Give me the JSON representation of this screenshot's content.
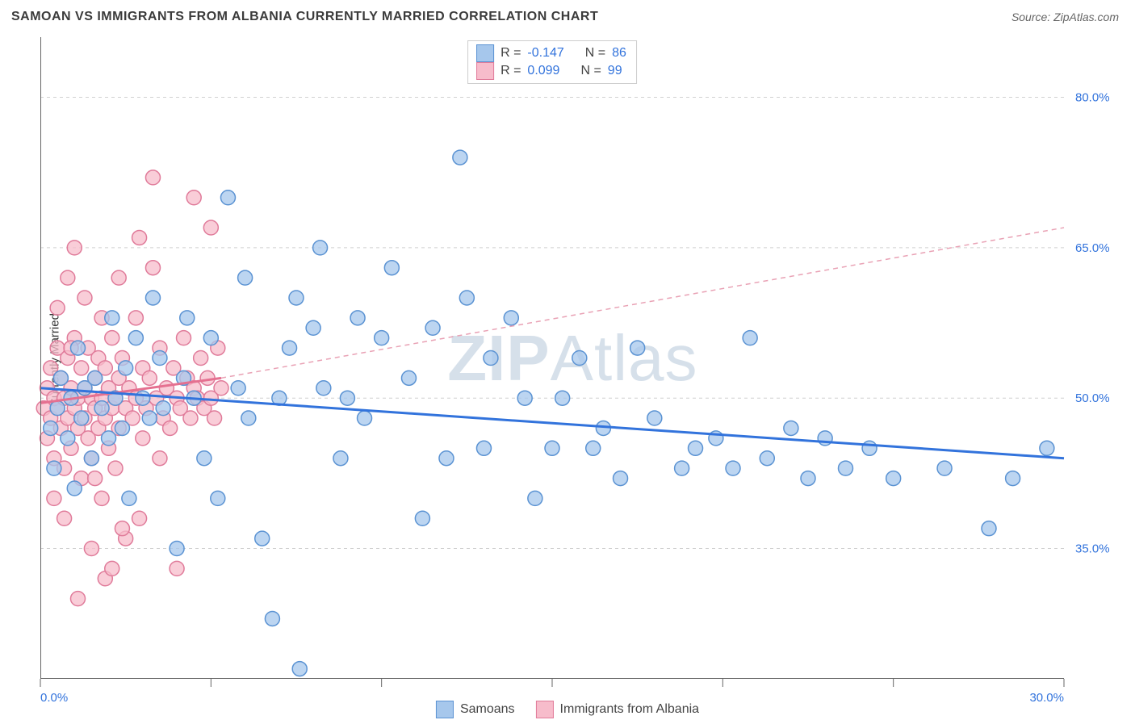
{
  "title": "SAMOAN VS IMMIGRANTS FROM ALBANIA CURRENTLY MARRIED CORRELATION CHART",
  "source": "Source: ZipAtlas.com",
  "watermark_a": "ZIP",
  "watermark_b": "Atlas",
  "chart": {
    "type": "scatter",
    "background_color": "#ffffff",
    "grid_color": "#d0d0d0",
    "xlim": [
      0,
      30
    ],
    "ylim": [
      22,
      86
    ],
    "x_tick_positions": [
      0,
      5,
      10,
      15,
      20,
      25,
      30
    ],
    "x_tick_labels": {
      "0": "0.0%",
      "30": "30.0%"
    },
    "y_ticks": [
      {
        "v": 35,
        "label": "35.0%"
      },
      {
        "v": 50,
        "label": "50.0%"
      },
      {
        "v": 65,
        "label": "65.0%"
      },
      {
        "v": 80,
        "label": "80.0%"
      }
    ],
    "y_axis_title": "Currently Married",
    "marker_radius": 9,
    "series_blue": {
      "name": "Samoans",
      "color_fill": "#a6c7ec",
      "color_stroke": "#5b93d3",
      "R": "-0.147",
      "N": "86",
      "trend": {
        "x1": 0,
        "y1": 51.0,
        "x2": 30,
        "y2": 44.0,
        "color": "#3273dc",
        "width": 3
      },
      "points": [
        [
          0.3,
          47
        ],
        [
          0.4,
          43
        ],
        [
          0.5,
          49
        ],
        [
          0.6,
          52
        ],
        [
          0.8,
          46
        ],
        [
          0.9,
          50
        ],
        [
          1.0,
          41
        ],
        [
          1.1,
          55
        ],
        [
          1.2,
          48
        ],
        [
          1.3,
          51
        ],
        [
          1.5,
          44
        ],
        [
          1.6,
          52
        ],
        [
          1.8,
          49
        ],
        [
          2.0,
          46
        ],
        [
          2.1,
          58
        ],
        [
          2.2,
          50
        ],
        [
          2.4,
          47
        ],
        [
          2.5,
          53
        ],
        [
          2.6,
          40
        ],
        [
          2.8,
          56
        ],
        [
          3.0,
          50
        ],
        [
          3.2,
          48
        ],
        [
          3.3,
          60
        ],
        [
          3.5,
          54
        ],
        [
          3.6,
          49
        ],
        [
          4.0,
          35
        ],
        [
          4.2,
          52
        ],
        [
          4.3,
          58
        ],
        [
          4.5,
          50
        ],
        [
          4.8,
          44
        ],
        [
          5.0,
          56
        ],
        [
          5.2,
          40
        ],
        [
          5.5,
          70
        ],
        [
          5.8,
          51
        ],
        [
          6.0,
          62
        ],
        [
          6.1,
          48
        ],
        [
          6.5,
          36
        ],
        [
          6.8,
          28
        ],
        [
          7.0,
          50
        ],
        [
          7.3,
          55
        ],
        [
          7.5,
          60
        ],
        [
          7.6,
          23
        ],
        [
          8.0,
          57
        ],
        [
          8.2,
          65
        ],
        [
          8.3,
          51
        ],
        [
          8.8,
          44
        ],
        [
          9.0,
          50
        ],
        [
          9.3,
          58
        ],
        [
          9.5,
          48
        ],
        [
          10.0,
          56
        ],
        [
          10.3,
          63
        ],
        [
          10.8,
          52
        ],
        [
          11.2,
          38
        ],
        [
          11.5,
          57
        ],
        [
          11.9,
          44
        ],
        [
          12.3,
          74
        ],
        [
          12.5,
          60
        ],
        [
          13.0,
          45
        ],
        [
          13.2,
          54
        ],
        [
          13.8,
          58
        ],
        [
          14.2,
          50
        ],
        [
          14.5,
          40
        ],
        [
          15.0,
          45
        ],
        [
          15.3,
          50
        ],
        [
          15.8,
          54
        ],
        [
          16.2,
          45
        ],
        [
          16.5,
          47
        ],
        [
          17.0,
          42
        ],
        [
          17.5,
          55
        ],
        [
          18.0,
          48
        ],
        [
          18.8,
          43
        ],
        [
          19.2,
          45
        ],
        [
          19.8,
          46
        ],
        [
          20.3,
          43
        ],
        [
          20.8,
          56
        ],
        [
          21.3,
          44
        ],
        [
          22.0,
          47
        ],
        [
          22.5,
          42
        ],
        [
          23.0,
          46
        ],
        [
          23.6,
          43
        ],
        [
          24.3,
          45
        ],
        [
          25.0,
          42
        ],
        [
          26.5,
          43
        ],
        [
          27.8,
          37
        ],
        [
          28.5,
          42
        ],
        [
          29.5,
          45
        ]
      ]
    },
    "series_pink": {
      "name": "Immigrants from Albania",
      "color_fill": "#f7bccb",
      "color_stroke": "#e07b9a",
      "R": "0.099",
      "N": "99",
      "trend_solid": {
        "x1": 0,
        "y1": 49.5,
        "x2": 5.3,
        "y2": 52.0,
        "color": "#e57090",
        "width": 3
      },
      "trend_dash": {
        "x1": 5.3,
        "y1": 52.0,
        "x2": 30,
        "y2": 67.0,
        "color": "#e9a2b5",
        "width": 1.5
      },
      "points": [
        [
          0.1,
          49
        ],
        [
          0.2,
          51
        ],
        [
          0.2,
          46
        ],
        [
          0.3,
          53
        ],
        [
          0.3,
          48
        ],
        [
          0.4,
          50
        ],
        [
          0.4,
          44
        ],
        [
          0.5,
          55
        ],
        [
          0.5,
          49
        ],
        [
          0.6,
          47
        ],
        [
          0.6,
          52
        ],
        [
          0.7,
          50
        ],
        [
          0.7,
          43
        ],
        [
          0.8,
          54
        ],
        [
          0.8,
          48
        ],
        [
          0.9,
          51
        ],
        [
          0.9,
          45
        ],
        [
          1.0,
          49
        ],
        [
          1.0,
          56
        ],
        [
          1.1,
          47
        ],
        [
          1.1,
          50
        ],
        [
          1.2,
          53
        ],
        [
          1.2,
          42
        ],
        [
          1.3,
          48
        ],
        [
          1.3,
          51
        ],
        [
          1.4,
          55
        ],
        [
          1.4,
          46
        ],
        [
          1.5,
          50
        ],
        [
          1.5,
          44
        ],
        [
          1.6,
          52
        ],
        [
          1.6,
          49
        ],
        [
          1.7,
          54
        ],
        [
          1.7,
          47
        ],
        [
          1.8,
          50
        ],
        [
          1.8,
          40
        ],
        [
          1.9,
          53
        ],
        [
          1.9,
          48
        ],
        [
          2.0,
          51
        ],
        [
          2.0,
          45
        ],
        [
          2.1,
          56
        ],
        [
          2.1,
          49
        ],
        [
          2.2,
          50
        ],
        [
          2.2,
          43
        ],
        [
          2.3,
          52
        ],
        [
          2.3,
          47
        ],
        [
          2.4,
          54
        ],
        [
          2.5,
          49
        ],
        [
          2.5,
          36
        ],
        [
          2.6,
          51
        ],
        [
          2.7,
          48
        ],
        [
          2.8,
          50
        ],
        [
          2.9,
          38
        ],
        [
          3.0,
          53
        ],
        [
          3.0,
          46
        ],
        [
          3.1,
          49
        ],
        [
          3.2,
          52
        ],
        [
          3.3,
          63
        ],
        [
          3.4,
          50
        ],
        [
          3.5,
          44
        ],
        [
          3.5,
          55
        ],
        [
          3.6,
          48
        ],
        [
          3.7,
          51
        ],
        [
          3.8,
          47
        ],
        [
          3.9,
          53
        ],
        [
          4.0,
          50
        ],
        [
          4.0,
          33
        ],
        [
          4.1,
          49
        ],
        [
          4.2,
          56
        ],
        [
          4.3,
          52
        ],
        [
          4.4,
          48
        ],
        [
          4.5,
          51
        ],
        [
          4.5,
          70
        ],
        [
          4.6,
          50
        ],
        [
          4.7,
          54
        ],
        [
          4.8,
          49
        ],
        [
          4.9,
          52
        ],
        [
          5.0,
          50
        ],
        [
          5.0,
          67
        ],
        [
          5.1,
          48
        ],
        [
          5.2,
          55
        ],
        [
          5.3,
          51
        ],
        [
          0.5,
          59
        ],
        [
          0.8,
          62
        ],
        [
          1.3,
          60
        ],
        [
          1.0,
          65
        ],
        [
          1.8,
          58
        ],
        [
          2.3,
          62
        ],
        [
          2.8,
          58
        ],
        [
          0.4,
          40
        ],
        [
          0.7,
          38
        ],
        [
          1.5,
          35
        ],
        [
          1.9,
          32
        ],
        [
          2.4,
          37
        ],
        [
          1.1,
          30
        ],
        [
          2.1,
          33
        ],
        [
          3.3,
          72
        ],
        [
          2.9,
          66
        ],
        [
          0.9,
          55
        ],
        [
          1.6,
          42
        ]
      ]
    }
  },
  "legend_top": {
    "rows": [
      {
        "swatch": "blue",
        "r_label": "R =",
        "r_val": "-0.147",
        "n_label": "N =",
        "n_val": "86"
      },
      {
        "swatch": "pink",
        "r_label": "R =",
        "r_val": "0.099",
        "n_label": "N =",
        "n_val": "99"
      }
    ]
  },
  "legend_bottom": {
    "items": [
      {
        "swatch": "blue",
        "label": "Samoans"
      },
      {
        "swatch": "pink",
        "label": "Immigrants from Albania"
      }
    ]
  }
}
